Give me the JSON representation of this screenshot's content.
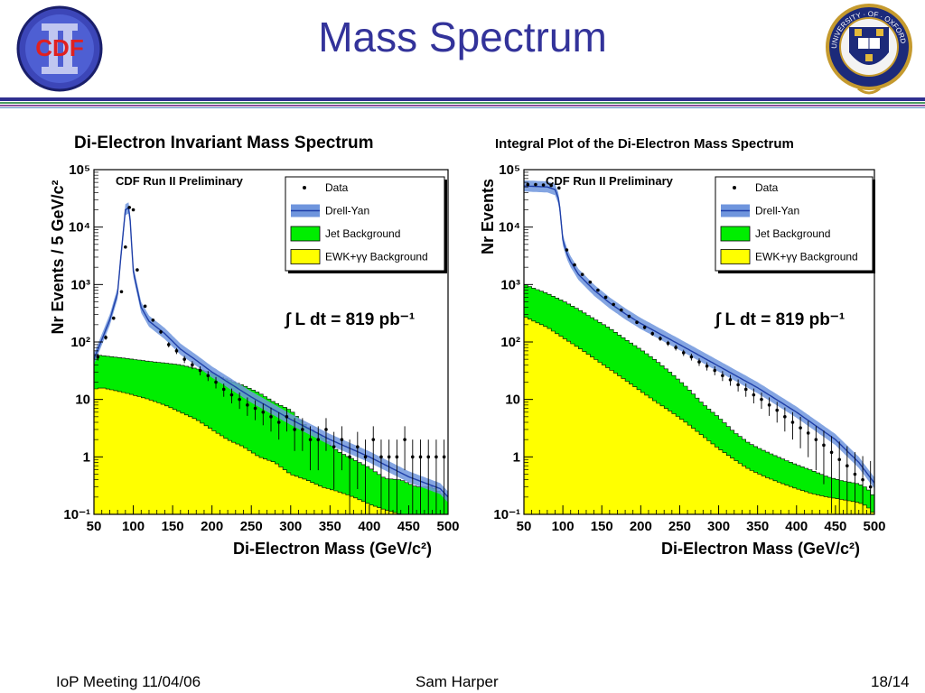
{
  "slide": {
    "title": "Mass Spectrum",
    "cdf_logo_text": "CDF",
    "oxford_motto": "UNIVERSITY · OF · OXFORD",
    "colors": {
      "title": "#33339a",
      "rule_blue": "#2f2f8f",
      "rule_green": "#4c9b63",
      "rule_purple": "#8a4f9e",
      "jet": "#00ee00",
      "ewk": "#ffff00",
      "dy": "#6f95dd",
      "dy_line": "#1f3fa8"
    }
  },
  "footer": {
    "left": "IoP Meeting 11/04/06",
    "center": "Sam Harper",
    "right": "18/14"
  },
  "chart_data": [
    {
      "type": "area",
      "title": "Di-Electron Invariant Mass Spectrum",
      "watermark": "CDF Run II Preliminary",
      "xlabel": "Di-Electron Mass (GeV/c²)",
      "ylabel": "Nr Events / 5 GeV/c²",
      "xlim": [
        50,
        500
      ],
      "ylim": [
        0.1,
        100000
      ],
      "log_y": true,
      "grid": false,
      "x_ticks": [
        "50",
        "100",
        "150",
        "200",
        "250",
        "300",
        "350",
        "400",
        "450",
        "500"
      ],
      "y_ticks": [
        "10⁻¹",
        "1",
        "10",
        "10²",
        "10³",
        "10⁴",
        "10⁵"
      ],
      "legend": {
        "placement": "top-right",
        "entries": [
          "Data",
          "Drell-Yan",
          "Jet Background",
          "EWK+γγ Background"
        ]
      },
      "annotation": "∫ L dt = 819 pb⁻¹",
      "series": [
        {
          "name": "Data",
          "kind": "points",
          "x": [
            55,
            65,
            75,
            85,
            90,
            95,
            100,
            105,
            115,
            125,
            135,
            145,
            155,
            165,
            175,
            185,
            195,
            205,
            215,
            225,
            235,
            245,
            255,
            265,
            275,
            285,
            295,
            305,
            315,
            325,
            335,
            345,
            355,
            365,
            375,
            385,
            395,
            405,
            415,
            425,
            435,
            445,
            455,
            465,
            475,
            485,
            495
          ],
          "y": [
            55,
            120,
            260,
            750,
            4500,
            22000,
            20000,
            1800,
            420,
            240,
            150,
            90,
            70,
            50,
            40,
            32,
            26,
            20,
            15,
            12,
            10,
            8,
            7,
            6,
            5,
            4,
            5,
            3,
            3,
            2,
            2,
            3,
            1.5,
            2,
            1,
            1.5,
            1,
            2,
            1,
            1,
            1,
            2,
            1,
            1,
            1,
            1,
            1
          ]
        },
        {
          "name": "Drell-Yan",
          "kind": "band",
          "x": [
            50,
            60,
            70,
            80,
            85,
            90,
            95,
            100,
            110,
            120,
            140,
            160,
            180,
            200,
            250,
            300,
            350,
            400,
            450,
            490,
            500
          ],
          "y": [
            50,
            110,
            240,
            700,
            4000,
            20000,
            22000,
            1700,
            400,
            230,
            140,
            75,
            48,
            30,
            11,
            4.5,
            2,
            1,
            0.45,
            0.28,
            0.2
          ]
        },
        {
          "name": "Jet Background",
          "kind": "stack",
          "x": [
            50,
            60,
            80,
            100,
            120,
            140,
            160,
            180,
            200,
            220,
            240,
            260,
            280,
            300,
            320,
            340,
            360,
            380,
            400,
            420,
            440,
            460,
            480,
            500
          ],
          "y": [
            45,
            42,
            40,
            38,
            36,
            35,
            34,
            30,
            26,
            20,
            16,
            12,
            8,
            6,
            3,
            2,
            1,
            0.7,
            0.5,
            0.3,
            0.3,
            0.2,
            0.2,
            0.1
          ]
        },
        {
          "name": "EWK+γγ Background",
          "kind": "stack",
          "x": [
            50,
            60,
            80,
            100,
            120,
            140,
            160,
            180,
            200,
            220,
            240,
            260,
            280,
            300,
            320,
            340,
            360,
            380,
            400,
            420,
            440,
            460,
            480,
            500
          ],
          "y": [
            15,
            16,
            14,
            12,
            10,
            8,
            6,
            4.5,
            3,
            2,
            1.5,
            1,
            0.8,
            0.5,
            0.4,
            0.3,
            0.25,
            0.2,
            0.15,
            0.12,
            0.1,
            0.1,
            0.1,
            0.1
          ]
        }
      ]
    },
    {
      "type": "area",
      "title": "Integral Plot of the Di-Electron Mass Spectrum",
      "watermark": "CDF Run II Preliminary",
      "xlabel": "Di-Electron Mass (GeV/c²)",
      "ylabel": "Nr Events",
      "xlim": [
        50,
        500
      ],
      "ylim": [
        0.1,
        100000
      ],
      "log_y": true,
      "grid": false,
      "x_ticks": [
        "50",
        "100",
        "150",
        "200",
        "250",
        "300",
        "350",
        "400",
        "450",
        "500"
      ],
      "y_ticks": [
        "10⁻¹",
        "1",
        "10",
        "10²",
        "10³",
        "10⁴",
        "10⁵"
      ],
      "legend": {
        "placement": "top-right",
        "entries": [
          "Data",
          "Drell-Yan",
          "Jet Background",
          "EWK+γγ Background"
        ]
      },
      "annotation": "∫ L dt = 819 pb⁻¹",
      "series": [
        {
          "name": "Data",
          "kind": "points",
          "x": [
            55,
            65,
            75,
            85,
            95,
            105,
            115,
            125,
            135,
            145,
            155,
            165,
            175,
            185,
            195,
            205,
            215,
            225,
            235,
            245,
            255,
            265,
            275,
            285,
            295,
            305,
            315,
            325,
            335,
            345,
            355,
            365,
            375,
            385,
            395,
            405,
            415,
            425,
            435,
            445,
            455,
            465,
            475,
            485,
            495
          ],
          "y": [
            55000,
            55000,
            54000,
            53000,
            48000,
            4000,
            2200,
            1500,
            1100,
            800,
            600,
            450,
            360,
            280,
            220,
            180,
            140,
            115,
            95,
            80,
            65,
            55,
            45,
            38,
            32,
            26,
            22,
            18,
            15,
            12,
            10,
            8,
            6.5,
            5,
            4,
            3.2,
            2.6,
            2,
            1.6,
            1.2,
            0.9,
            0.7,
            0.5,
            0.4,
            0.3
          ]
        },
        {
          "name": "Drell-Yan",
          "kind": "band",
          "x": [
            50,
            80,
            90,
            95,
            100,
            105,
            110,
            120,
            140,
            160,
            180,
            200,
            250,
            300,
            350,
            400,
            450,
            480,
            500
          ],
          "y": [
            52000,
            50000,
            45000,
            30000,
            6000,
            3500,
            2500,
            1500,
            800,
            480,
            310,
            210,
            90,
            38,
            16,
            6,
            2,
            0.8,
            0.35
          ]
        },
        {
          "name": "Jet Background",
          "kind": "stack",
          "x": [
            50,
            60,
            80,
            100,
            120,
            140,
            160,
            180,
            200,
            220,
            240,
            260,
            280,
            300,
            320,
            340,
            360,
            380,
            400,
            420,
            440,
            460,
            480,
            490,
            500
          ],
          "y": [
            750,
            650,
            520,
            400,
            290,
            200,
            140,
            90,
            60,
            38,
            22,
            12,
            6,
            3.5,
            1.8,
            1.1,
            0.8,
            0.6,
            0.45,
            0.35,
            0.25,
            0.2,
            0.18,
            0.15,
            0.1
          ]
        },
        {
          "name": "EWK+γγ Background",
          "kind": "stack",
          "x": [
            50,
            60,
            80,
            100,
            120,
            140,
            160,
            180,
            200,
            220,
            240,
            260,
            280,
            300,
            320,
            340,
            360,
            380,
            400,
            420,
            440,
            460,
            480,
            490,
            500
          ],
          "y": [
            280,
            240,
            180,
            120,
            80,
            52,
            34,
            22,
            14,
            9,
            6,
            3.8,
            2.3,
            1.4,
            0.9,
            0.6,
            0.45,
            0.35,
            0.28,
            0.23,
            0.2,
            0.18,
            0.16,
            0.14,
            0.1
          ]
        }
      ]
    }
  ]
}
